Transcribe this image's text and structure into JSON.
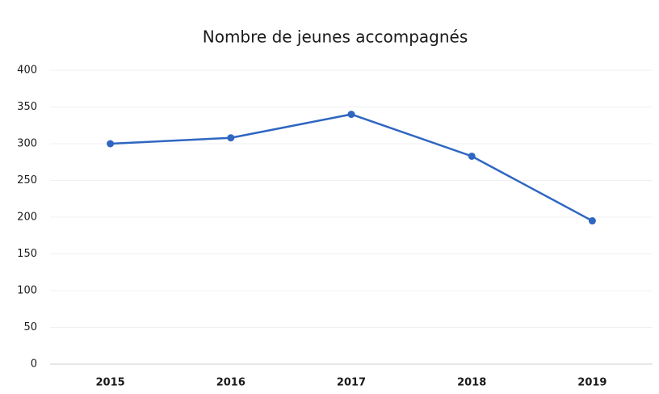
{
  "chart_data": {
    "type": "line",
    "title": "Nombre de jeunes accompagnés",
    "categories": [
      "2015",
      "2016",
      "2017",
      "2018",
      "2019"
    ],
    "values": [
      300,
      308,
      340,
      283,
      195
    ],
    "color": "#2f66c2",
    "ylim": [
      0,
      400
    ],
    "yticks": [
      0,
      50,
      100,
      150,
      200,
      250,
      300,
      350,
      400
    ],
    "grid": true
  }
}
